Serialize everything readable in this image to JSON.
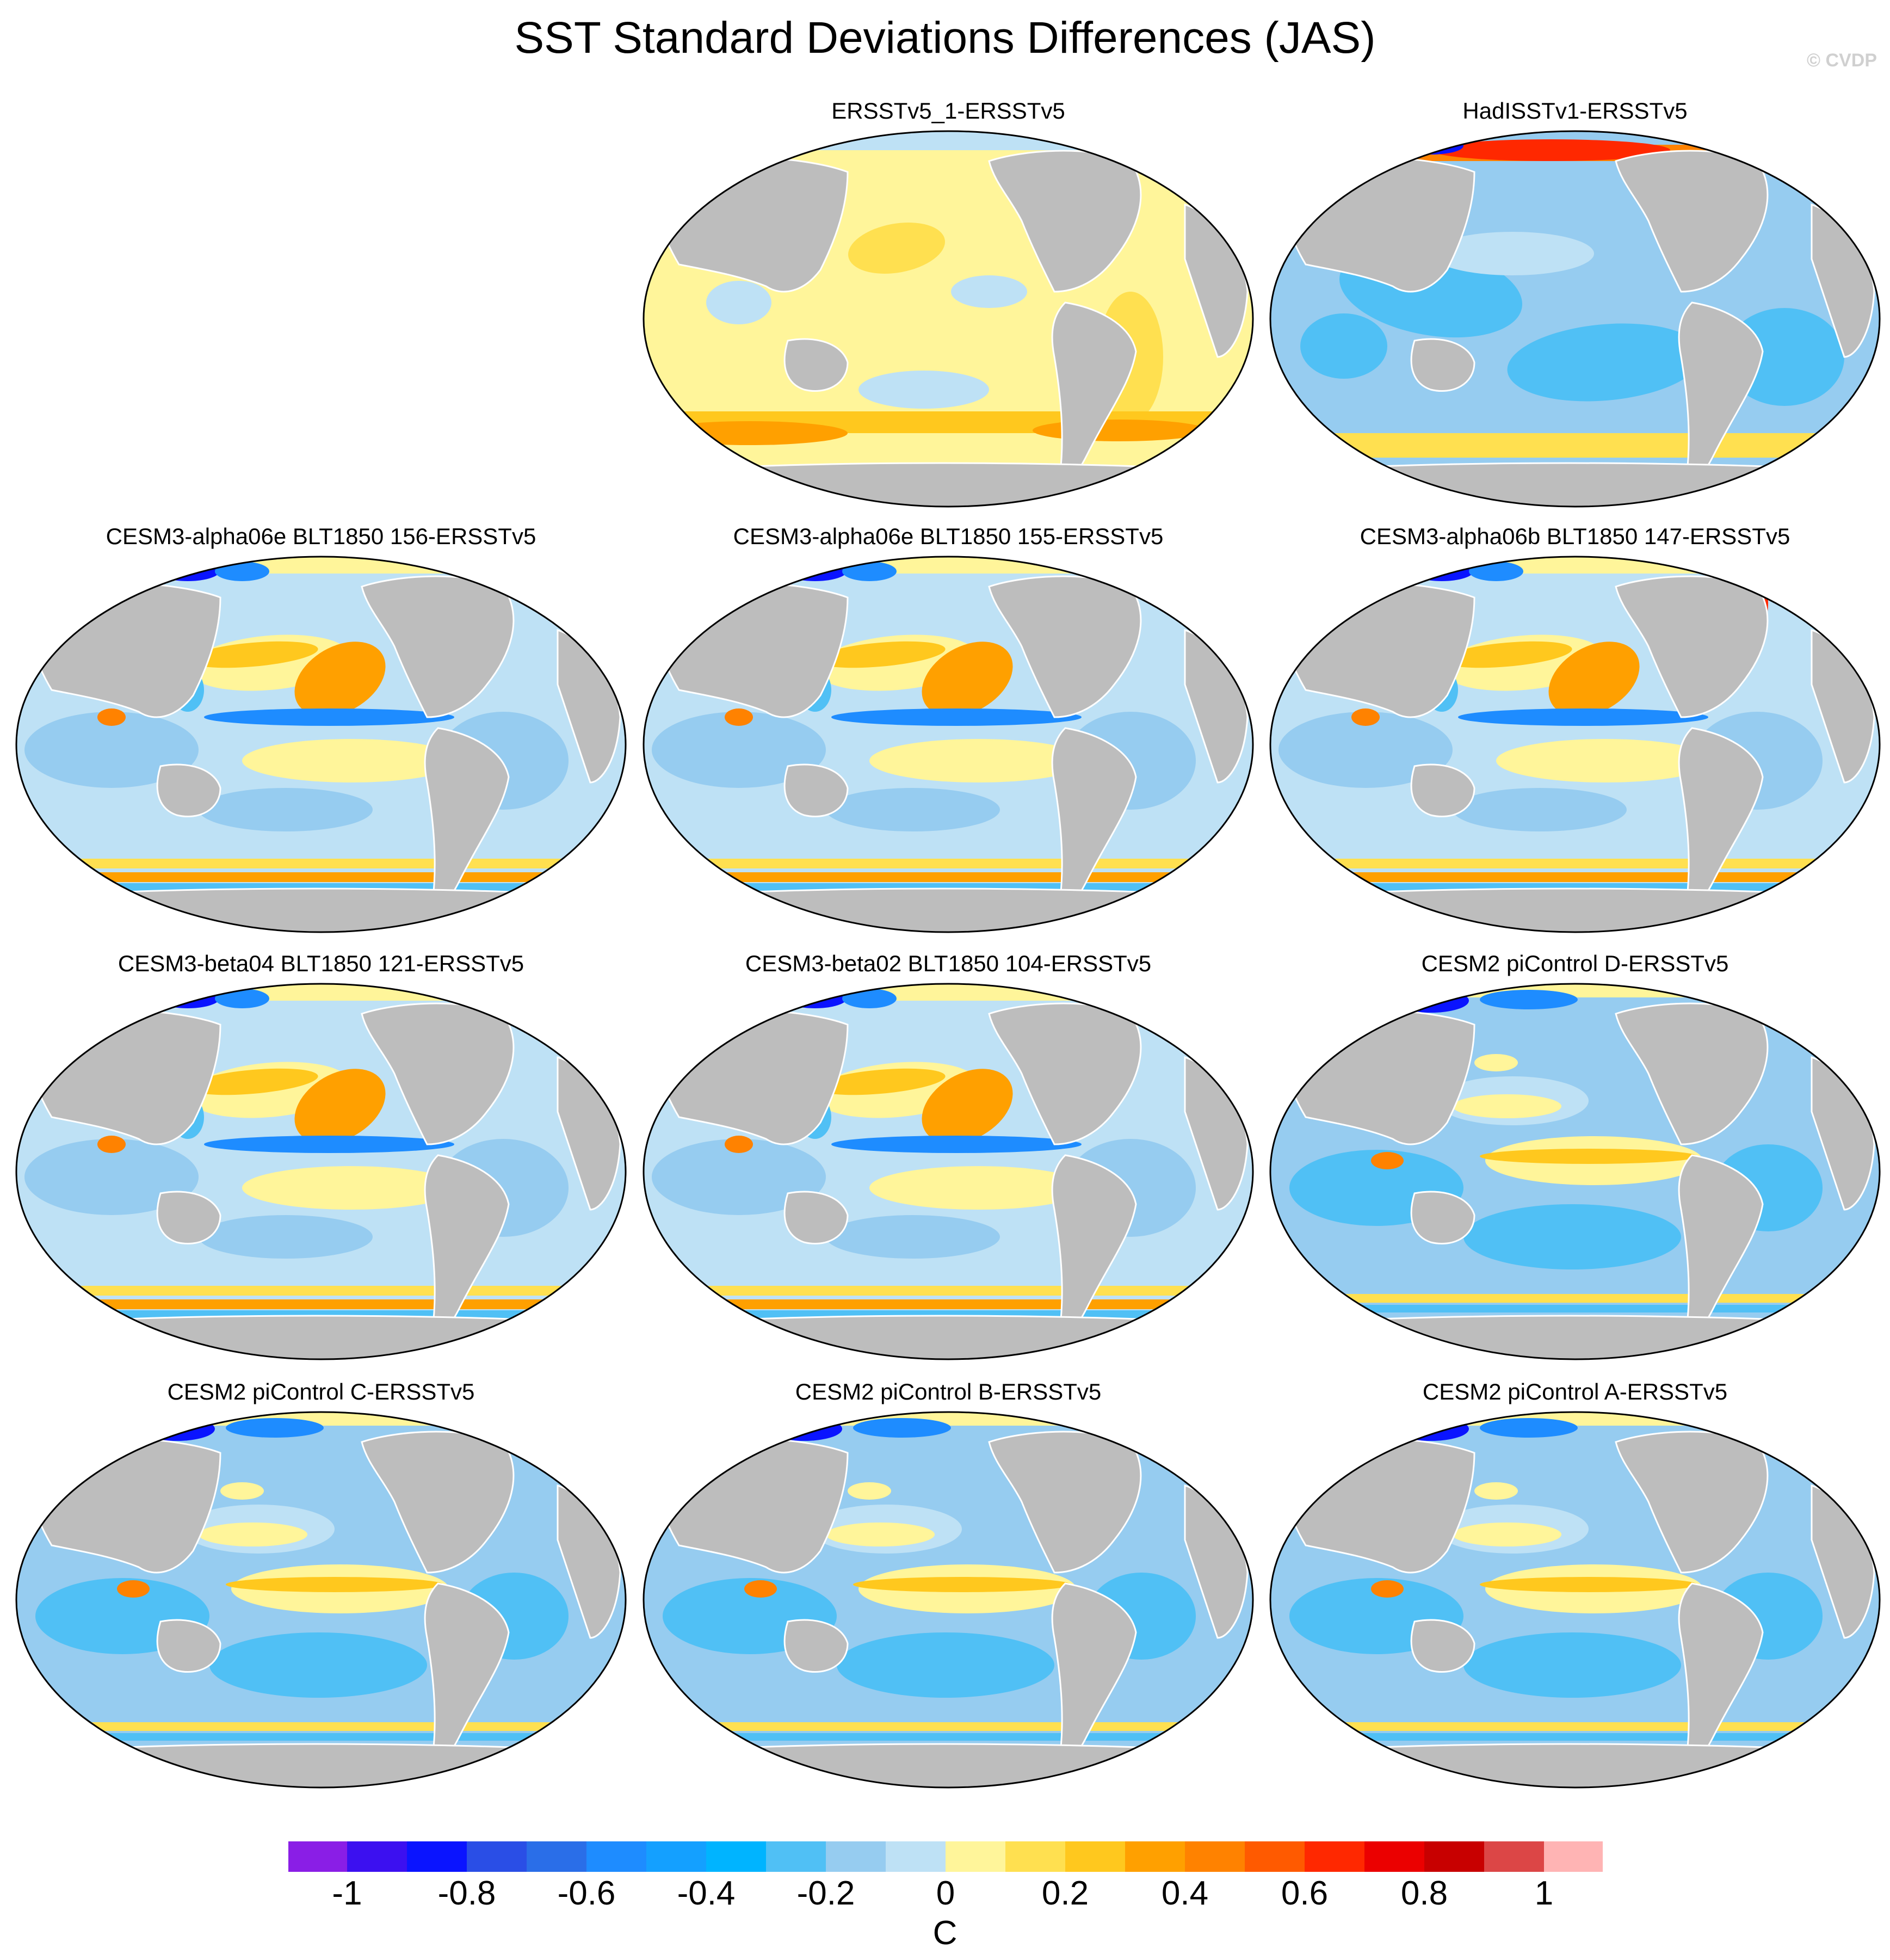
{
  "page": {
    "title": "SST Standard Deviations Differences (JAS)",
    "credit": "© CVDP"
  },
  "panels": [
    {
      "title": "ERSSTv5_1-ERSSTv5",
      "pattern": "obs_warm"
    },
    {
      "title": "HadISSTv1-ERSSTv5",
      "pattern": "obs_cool"
    },
    {
      "title": "CESM3-alpha06e BLT1850 156-ERSSTv5",
      "pattern": "cesm3"
    },
    {
      "title": "CESM3-alpha06e BLT1850 155-ERSSTv5",
      "pattern": "cesm3"
    },
    {
      "title": "CESM3-alpha06b BLT1850 147-ERSSTv5",
      "pattern": "cesm3_strong"
    },
    {
      "title": "CESM3-beta04 BLT1850 121-ERSSTv5",
      "pattern": "cesm3"
    },
    {
      "title": "CESM3-beta02 BLT1850 104-ERSSTv5",
      "pattern": "cesm3"
    },
    {
      "title": "CESM2 piControl D-ERSSTv5",
      "pattern": "cesm2"
    },
    {
      "title": "CESM2 piControl C-ERSSTv5",
      "pattern": "cesm2"
    },
    {
      "title": "CESM2 piControl B-ERSSTv5",
      "pattern": "cesm2"
    },
    {
      "title": "CESM2 piControl A-ERSSTv5",
      "pattern": "cesm2"
    }
  ],
  "colorbar": {
    "unit": "C",
    "labels": [
      "-1",
      "-0.8",
      "-0.6",
      "-0.4",
      "-0.2",
      "0",
      "0.2",
      "0.4",
      "0.6",
      "0.8",
      "1"
    ],
    "colors": [
      "#8a1ee6",
      "#3c10f0",
      "#0a14ff",
      "#2a4ee6",
      "#2a6ee8",
      "#1e8cff",
      "#14a0ff",
      "#00b4ff",
      "#50c0f5",
      "#96ccf0",
      "#bee1f5",
      "#fff59a",
      "#ffe050",
      "#ffc81e",
      "#ffa000",
      "#ff8200",
      "#ff5a00",
      "#ff2800",
      "#eb0000",
      "#c80000",
      "#dc4646",
      "#ffb4b4"
    ]
  }
}
